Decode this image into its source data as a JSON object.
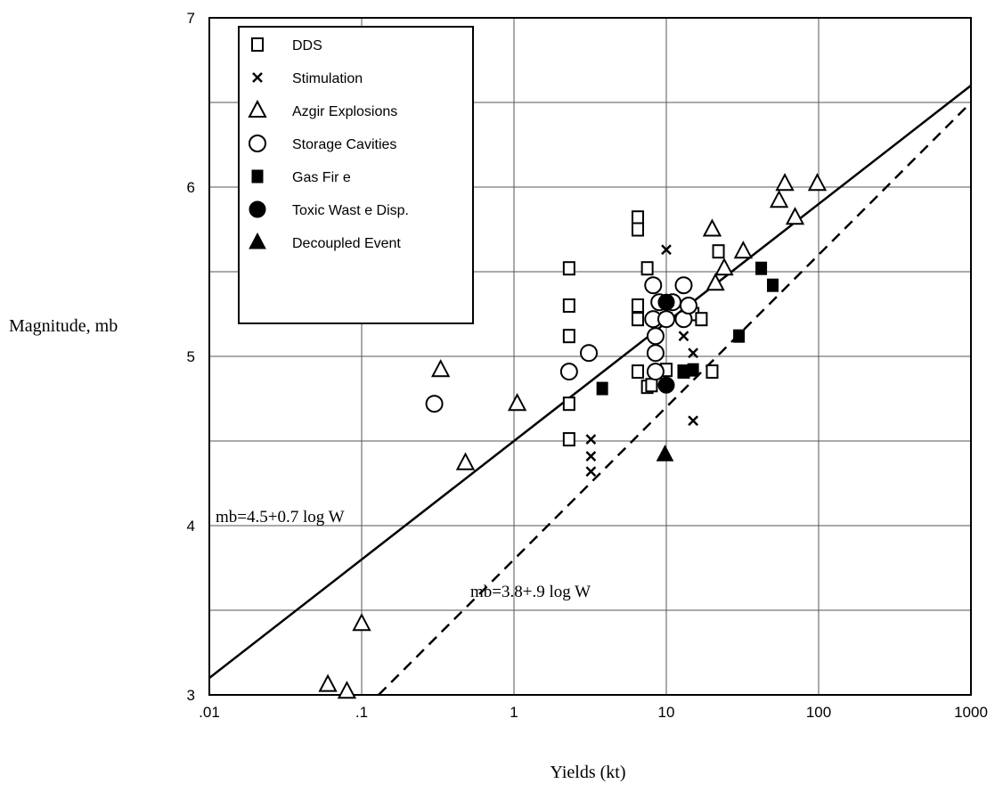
{
  "chart_data": {
    "type": "scatter",
    "xscale": "log",
    "xlim": [
      0.01,
      1000
    ],
    "ylim": [
      3,
      7
    ],
    "xlabel": "Yields (kt)",
    "ylabel": "Magnitude, mb",
    "x_tick_labels": [
      ".01",
      ".1",
      "1",
      "10",
      "100",
      "1000"
    ],
    "y_tick_labels": [
      "3",
      "4",
      "5",
      "6",
      "7"
    ],
    "grid": true,
    "legend_position": "top-left",
    "series": [
      {
        "name": "DDS",
        "marker": "square-open",
        "points": [
          [
            2.3,
            5.52
          ],
          [
            2.3,
            5.3
          ],
          [
            2.3,
            5.12
          ],
          [
            2.3,
            4.72
          ],
          [
            2.3,
            4.51
          ],
          [
            6.5,
            5.82
          ],
          [
            6.5,
            5.75
          ],
          [
            6.5,
            5.3
          ],
          [
            6.5,
            5.22
          ],
          [
            6.5,
            4.91
          ],
          [
            7.5,
            5.52
          ],
          [
            7.5,
            4.82
          ],
          [
            8,
            4.83
          ],
          [
            10,
            4.92
          ],
          [
            10,
            5.22
          ],
          [
            13,
            4.91
          ],
          [
            15,
            5.25
          ],
          [
            17,
            5.22
          ],
          [
            20,
            4.91
          ],
          [
            22,
            5.62
          ]
        ]
      },
      {
        "name": "Stimulation",
        "marker": "x",
        "points": [
          [
            3.2,
            4.51
          ],
          [
            3.2,
            4.41
          ],
          [
            3.2,
            4.32
          ],
          [
            10,
            5.63
          ],
          [
            13,
            5.12
          ],
          [
            15,
            5.02
          ],
          [
            15,
            4.62
          ]
        ]
      },
      {
        "name": "Azgir Explosions",
        "marker": "triangle-open",
        "points": [
          [
            0.06,
            3.06
          ],
          [
            0.08,
            3.02
          ],
          [
            0.1,
            3.42
          ],
          [
            0.33,
            4.92
          ],
          [
            0.48,
            4.37
          ],
          [
            1.05,
            4.72
          ],
          [
            20,
            5.75
          ],
          [
            21,
            5.43
          ],
          [
            24,
            5.52
          ],
          [
            32,
            5.62
          ],
          [
            55,
            5.92
          ],
          [
            60,
            6.02
          ],
          [
            70,
            5.82
          ],
          [
            98,
            6.02
          ]
        ]
      },
      {
        "name": "Storage Cavities",
        "marker": "circle-open",
        "points": [
          [
            0.3,
            4.72
          ],
          [
            2.3,
            4.91
          ],
          [
            3.1,
            5.02
          ],
          [
            8.2,
            5.42
          ],
          [
            8.2,
            5.22
          ],
          [
            8.5,
            5.02
          ],
          [
            8.5,
            4.91
          ],
          [
            8.5,
            5.12
          ],
          [
            9,
            5.32
          ],
          [
            10,
            5.22
          ],
          [
            11,
            5.32
          ],
          [
            13,
            5.42
          ],
          [
            13,
            5.22
          ],
          [
            14,
            5.3
          ]
        ]
      },
      {
        "name": "Gas Fir e",
        "marker": "square-filled",
        "points": [
          [
            3.8,
            4.81
          ],
          [
            13,
            4.91
          ],
          [
            15,
            4.92
          ],
          [
            30,
            5.12
          ],
          [
            42,
            5.52
          ],
          [
            50,
            5.42
          ]
        ]
      },
      {
        "name": "Toxic Wast e Disp.",
        "marker": "circle-filled",
        "points": [
          [
            10,
            5.32
          ],
          [
            10,
            4.83
          ]
        ]
      },
      {
        "name": "Decoupled Event",
        "marker": "triangle-filled",
        "points": [
          [
            9.8,
            4.42
          ]
        ]
      }
    ],
    "lines": [
      {
        "label": "mb=4.5+0.7 log W",
        "intercept": 4.5,
        "slope": 0.7,
        "style": "solid"
      },
      {
        "label": "mb=3.8+.9 log W",
        "intercept": 3.8,
        "slope": 0.9,
        "style": "dashed"
      }
    ]
  }
}
